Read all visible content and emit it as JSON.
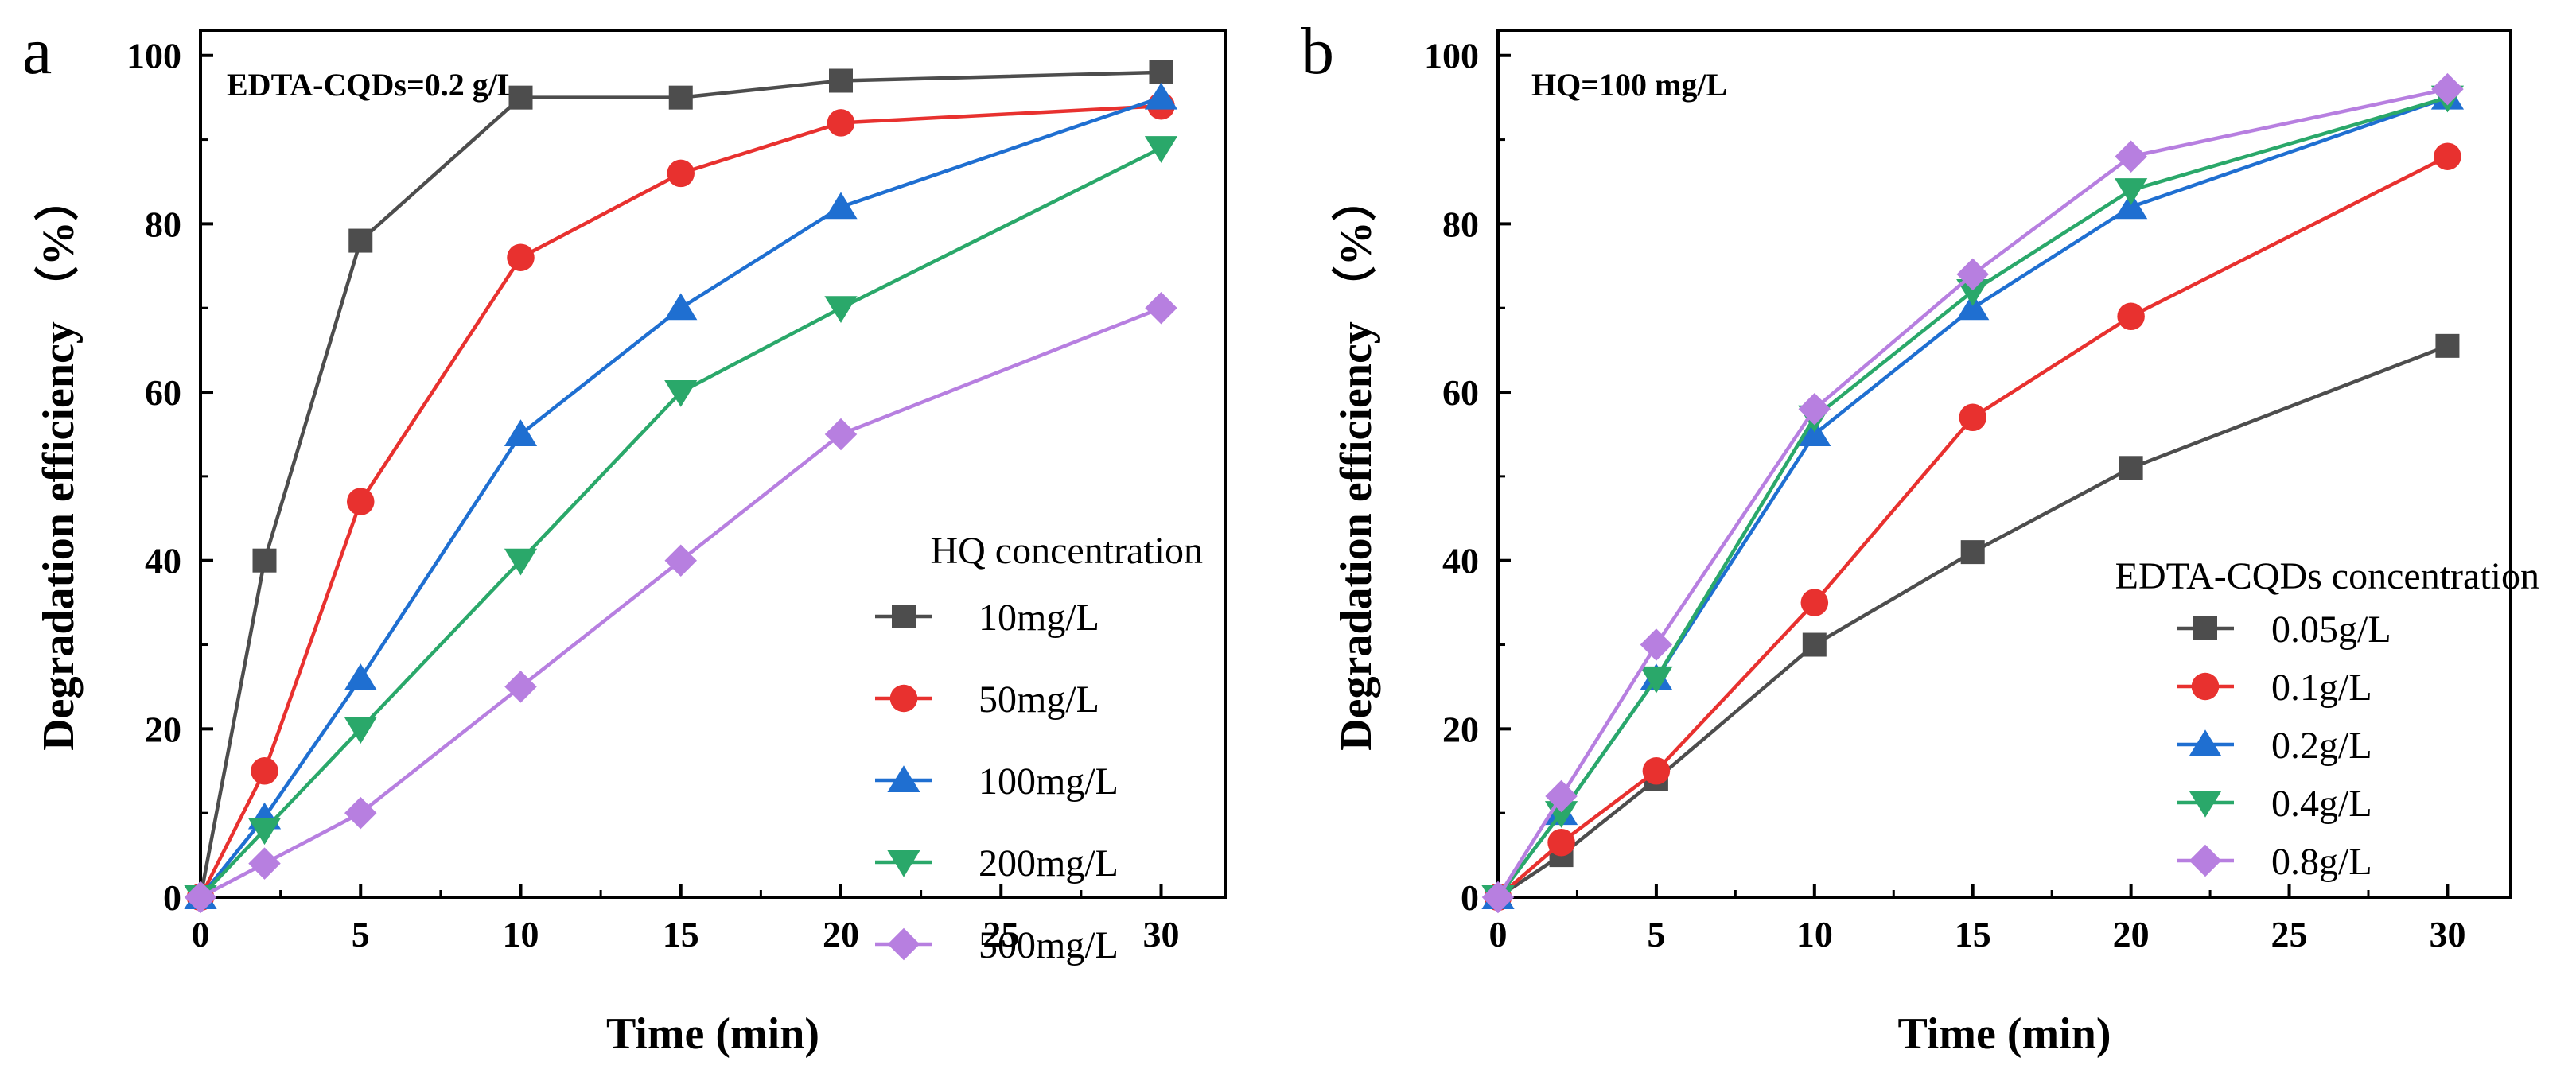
{
  "chart_data": [
    {
      "panel": "a",
      "type": "line",
      "annotation": "EDTA-CQDs=0.2 g/L",
      "xlabel": "Time (min)",
      "ylabel": "Degradation efficiency （%）",
      "xlim": [
        0,
        32
      ],
      "ylim": [
        0,
        103
      ],
      "xticks": [
        0,
        5,
        10,
        15,
        20,
        25,
        30
      ],
      "yticks": [
        0,
        20,
        40,
        60,
        80,
        100
      ],
      "grid": false,
      "legend_title": "HQ concentration",
      "legend_position": "bottom-right",
      "x": [
        0,
        2,
        5,
        10,
        15,
        20,
        30
      ],
      "series": [
        {
          "name": "10mg/L",
          "marker": "square",
          "color": "#4d4d4d",
          "values": [
            0,
            40,
            78,
            95,
            95,
            97,
            98
          ]
        },
        {
          "name": "50mg/L",
          "marker": "circle",
          "color": "#e8312f",
          "values": [
            0,
            15,
            47,
            76,
            86,
            92,
            94
          ]
        },
        {
          "name": "100mg/L",
          "marker": "triangle-up",
          "color": "#1f6fd1",
          "values": [
            0,
            9.5,
            26,
            55,
            70,
            82,
            95
          ]
        },
        {
          "name": "200mg/L",
          "marker": "triangle-down",
          "color": "#2aa86a",
          "values": [
            0,
            8,
            20,
            40,
            60,
            70,
            89
          ]
        },
        {
          "name": "500mg/L",
          "marker": "diamond",
          "color": "#b77fe0",
          "values": [
            0,
            4,
            10,
            25,
            40,
            55,
            70
          ]
        }
      ]
    },
    {
      "panel": "b",
      "type": "line",
      "annotation": "HQ=100 mg/L",
      "xlabel": "Time (min)",
      "ylabel": "Degradation efficiency （%）",
      "xlim": [
        0,
        32
      ],
      "ylim": [
        0,
        103
      ],
      "xticks": [
        0,
        5,
        10,
        15,
        20,
        25,
        30
      ],
      "yticks": [
        0,
        20,
        40,
        60,
        80,
        100
      ],
      "grid": false,
      "legend_title": "EDTA-CQDs concentration",
      "legend_position": "bottom-right",
      "x": [
        0,
        2,
        5,
        10,
        15,
        20,
        30
      ],
      "series": [
        {
          "name": "0.05g/L",
          "marker": "square",
          "color": "#4d4d4d",
          "values": [
            0,
            5,
            14,
            30,
            41,
            51,
            65.5
          ]
        },
        {
          "name": "0.1g/L",
          "marker": "circle",
          "color": "#e8312f",
          "values": [
            0,
            6.5,
            15,
            35,
            57,
            69,
            88
          ]
        },
        {
          "name": "0.2g/L",
          "marker": "triangle-up",
          "color": "#1f6fd1",
          "values": [
            0,
            10,
            26,
            55,
            70,
            82,
            95
          ]
        },
        {
          "name": "0.4g/L",
          "marker": "triangle-down",
          "color": "#2aa86a",
          "values": [
            0,
            10,
            26,
            57,
            72,
            84,
            95
          ]
        },
        {
          "name": "0.8g/L",
          "marker": "diamond",
          "color": "#b77fe0",
          "values": [
            0,
            12,
            30,
            58,
            74,
            88,
            96
          ]
        }
      ]
    }
  ]
}
